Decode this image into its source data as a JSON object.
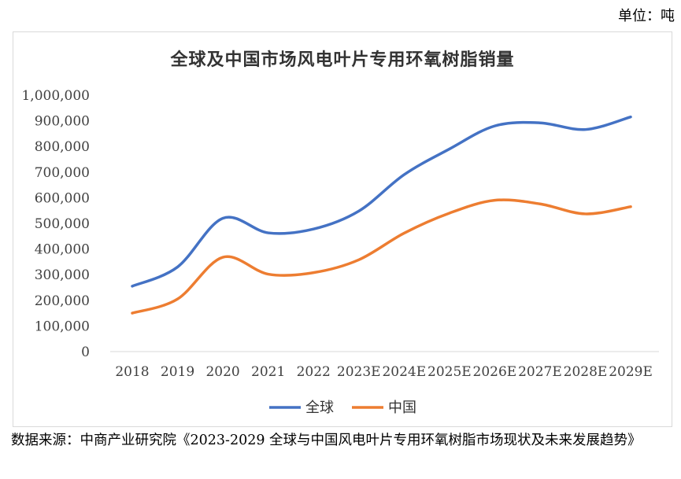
{
  "unit_label": "单位：吨",
  "chart_data": {
    "type": "line",
    "title": "全球及中国市场风电叶片专用环氧树脂销量",
    "xlabel": "",
    "ylabel": "",
    "categories": [
      "2018",
      "2019",
      "2020",
      "2021",
      "2022",
      "2023E",
      "2024E",
      "2025E",
      "2026E",
      "2027E",
      "2028E",
      "2029E"
    ],
    "y_ticks": [
      "0",
      "100,000",
      "200,000",
      "300,000",
      "400,000",
      "500,000",
      "600,000",
      "700,000",
      "800,000",
      "900,000",
      "1,000,000"
    ],
    "ylim": [
      0,
      1000000
    ],
    "grid": false,
    "legend_position": "bottom",
    "series": [
      {
        "name": "全球",
        "color": "#4472c4",
        "values": [
          255000,
          330000,
          520000,
          463000,
          478000,
          548000,
          690000,
          790000,
          880000,
          892000,
          866000,
          915000
        ]
      },
      {
        "name": "中国",
        "color": "#ed7d31",
        "values": [
          150000,
          205000,
          368000,
          302000,
          308000,
          358000,
          462000,
          540000,
          590000,
          576000,
          537000,
          565000
        ]
      }
    ]
  },
  "source_note": "数据来源：中商产业研究院《2023-2029 全球与中国风电叶片专用环氧树脂市场现状及未来发展趋势》"
}
